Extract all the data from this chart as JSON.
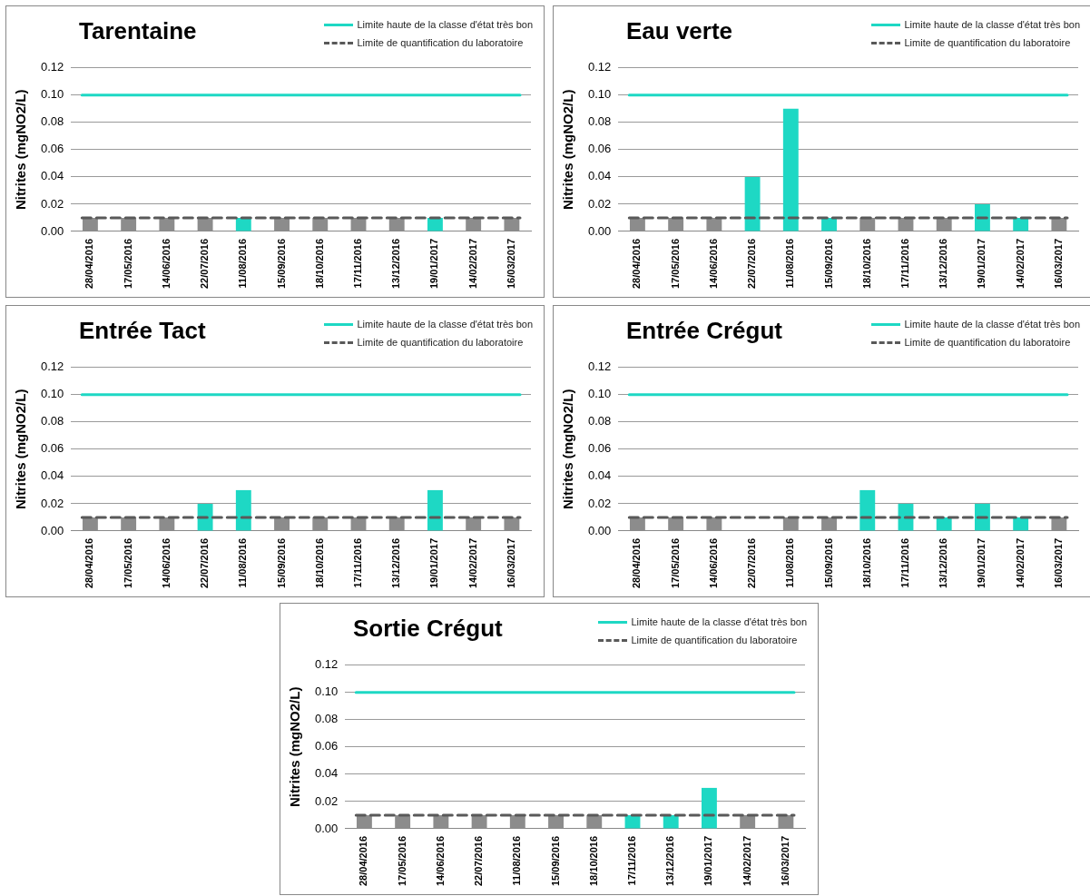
{
  "chart_data": [
    {
      "type": "bar",
      "title": "Tarentaine",
      "ylabel": "Nitrites (mgNO2/L)",
      "legend": "top right",
      "grid": "y",
      "categories": [
        "28/04/2016",
        "17/05/2016",
        "14/06/2016",
        "22/07/2016",
        "11/08/2016",
        "15/09/2016",
        "18/10/2016",
        "17/11/2016",
        "13/12/2016",
        "19/01/2017",
        "14/02/2017",
        "16/03/2017"
      ],
      "values": [
        0.01,
        0.01,
        0.01,
        0.01,
        0.01,
        0.01,
        0.01,
        0.01,
        0.01,
        0.01,
        0.01,
        0.01
      ],
      "colors": [
        "#8c8c8c",
        "#8c8c8c",
        "#8c8c8c",
        "#8c8c8c",
        "#1ed8c4",
        "#8c8c8c",
        "#8c8c8c",
        "#8c8c8c",
        "#8c8c8c",
        "#1ed8c4",
        "#8c8c8c",
        "#8c8c8c"
      ],
      "ylim": [
        0,
        0.12
      ],
      "yticks": [
        {
          "value": 0,
          "label": "0.00"
        },
        {
          "value": 0.02,
          "label": "0.02"
        },
        {
          "value": 0.04,
          "label": "0.04"
        },
        {
          "value": 0.06,
          "label": "0.06"
        },
        {
          "value": 0.08,
          "label": "0.08"
        },
        {
          "value": 0.1,
          "label": "0.10"
        },
        {
          "value": 0.12,
          "label": "0.12"
        }
      ],
      "ref_lines": [
        {
          "axis": "y",
          "value": 0.1,
          "label": "Limite haute de la classe d'état très bon",
          "color": "#1ed8c4",
          "line_style": "solid"
        },
        {
          "axis": "y",
          "value": 0.01,
          "label": "Limite de quantification du laboratoire",
          "color": "#595959",
          "line_style": "dashed"
        }
      ]
    },
    {
      "type": "bar",
      "title": "Eau verte",
      "ylabel": "Nitrites (mgNO2/L)",
      "legend": "top right",
      "grid": "y",
      "categories": [
        "28/04/2016",
        "17/05/2016",
        "14/06/2016",
        "22/07/2016",
        "11/08/2016",
        "15/09/2016",
        "18/10/2016",
        "17/11/2016",
        "13/12/2016",
        "19/01/2017",
        "14/02/2017",
        "16/03/2017"
      ],
      "values": [
        0.01,
        0.01,
        0.01,
        0.04,
        0.09,
        0.01,
        0.01,
        0.01,
        0.01,
        0.02,
        0.01,
        0.01
      ],
      "colors": [
        "#8c8c8c",
        "#8c8c8c",
        "#8c8c8c",
        "#1ed8c4",
        "#1ed8c4",
        "#1ed8c4",
        "#8c8c8c",
        "#8c8c8c",
        "#8c8c8c",
        "#1ed8c4",
        "#1ed8c4",
        "#8c8c8c"
      ],
      "ylim": [
        0,
        0.12
      ],
      "yticks": [
        {
          "value": 0,
          "label": "0.00"
        },
        {
          "value": 0.02,
          "label": "0.02"
        },
        {
          "value": 0.04,
          "label": "0.04"
        },
        {
          "value": 0.06,
          "label": "0.06"
        },
        {
          "value": 0.08,
          "label": "0.08"
        },
        {
          "value": 0.1,
          "label": "0.10"
        },
        {
          "value": 0.12,
          "label": "0.12"
        }
      ],
      "ref_lines": [
        {
          "axis": "y",
          "value": 0.1,
          "label": "Limite haute de la classe d'état très bon",
          "color": "#1ed8c4",
          "line_style": "solid"
        },
        {
          "axis": "y",
          "value": 0.01,
          "label": "Limite de quantification du laboratoire",
          "color": "#595959",
          "line_style": "dashed"
        }
      ]
    },
    {
      "type": "bar",
      "title": "Entrée Tact",
      "ylabel": "Nitrites (mgNO2/L)",
      "legend": "top right",
      "grid": "y",
      "categories": [
        "28/04/2016",
        "17/05/2016",
        "14/06/2016",
        "22/07/2016",
        "11/08/2016",
        "15/09/2016",
        "18/10/2016",
        "17/11/2016",
        "13/12/2016",
        "19/01/2017",
        "14/02/2017",
        "16/03/2017"
      ],
      "values": [
        0.01,
        0.01,
        0.01,
        0.02,
        0.03,
        0.01,
        0.01,
        0.01,
        0.01,
        0.03,
        0.01,
        0.01
      ],
      "colors": [
        "#8c8c8c",
        "#8c8c8c",
        "#8c8c8c",
        "#1ed8c4",
        "#1ed8c4",
        "#8c8c8c",
        "#8c8c8c",
        "#8c8c8c",
        "#8c8c8c",
        "#1ed8c4",
        "#8c8c8c",
        "#8c8c8c"
      ],
      "ylim": [
        0,
        0.12
      ],
      "yticks": [
        {
          "value": 0,
          "label": "0.00"
        },
        {
          "value": 0.02,
          "label": "0.02"
        },
        {
          "value": 0.04,
          "label": "0.04"
        },
        {
          "value": 0.06,
          "label": "0.06"
        },
        {
          "value": 0.08,
          "label": "0.08"
        },
        {
          "value": 0.1,
          "label": "0.10"
        },
        {
          "value": 0.12,
          "label": "0.12"
        }
      ],
      "ref_lines": [
        {
          "axis": "y",
          "value": 0.1,
          "label": "Limite haute de la classe d'état très bon",
          "color": "#1ed8c4",
          "line_style": "solid"
        },
        {
          "axis": "y",
          "value": 0.01,
          "label": "Limite de quantification du laboratoire",
          "color": "#595959",
          "line_style": "dashed"
        }
      ]
    },
    {
      "type": "bar",
      "title": "Entrée Crégut",
      "ylabel": "Nitrites (mgNO2/L)",
      "legend": "top right",
      "grid": "y",
      "categories": [
        "28/04/2016",
        "17/05/2016",
        "14/06/2016",
        "22/07/2016",
        "11/08/2016",
        "15/09/2016",
        "18/10/2016",
        "17/11/2016",
        "13/12/2016",
        "19/01/2017",
        "14/02/2017",
        "16/03/2017"
      ],
      "values": [
        0.01,
        0.01,
        0.01,
        null,
        0.01,
        0.01,
        0.03,
        0.02,
        0.01,
        0.02,
        0.01,
        0.01
      ],
      "colors": [
        "#8c8c8c",
        "#8c8c8c",
        "#8c8c8c",
        "#8c8c8c",
        "#8c8c8c",
        "#8c8c8c",
        "#1ed8c4",
        "#1ed8c4",
        "#1ed8c4",
        "#1ed8c4",
        "#1ed8c4",
        "#8c8c8c"
      ],
      "ylim": [
        0,
        0.12
      ],
      "yticks": [
        {
          "value": 0,
          "label": "0.00"
        },
        {
          "value": 0.02,
          "label": "0.02"
        },
        {
          "value": 0.04,
          "label": "0.04"
        },
        {
          "value": 0.06,
          "label": "0.06"
        },
        {
          "value": 0.08,
          "label": "0.08"
        },
        {
          "value": 0.1,
          "label": "0.10"
        },
        {
          "value": 0.12,
          "label": "0.12"
        }
      ],
      "ref_lines": [
        {
          "axis": "y",
          "value": 0.1,
          "label": "Limite haute de la classe d'état très bon",
          "color": "#1ed8c4",
          "line_style": "solid"
        },
        {
          "axis": "y",
          "value": 0.01,
          "label": "Limite de quantification du laboratoire",
          "color": "#595959",
          "line_style": "dashed"
        }
      ]
    },
    {
      "type": "bar",
      "title": "Sortie Crégut",
      "ylabel": "Nitrites (mgNO2/L)",
      "legend": "top right",
      "grid": "y",
      "categories": [
        "28/04/2016",
        "17/05/2016",
        "14/06/2016",
        "22/07/2016",
        "11/08/2016",
        "15/09/2016",
        "18/10/2016",
        "17/11/2016",
        "13/12/2016",
        "19/01/2017",
        "14/02/2017",
        "16/03/2017"
      ],
      "values": [
        0.01,
        0.01,
        0.01,
        0.01,
        0.01,
        0.01,
        0.01,
        0.01,
        0.01,
        0.03,
        0.01,
        0.01
      ],
      "colors": [
        "#8c8c8c",
        "#8c8c8c",
        "#8c8c8c",
        "#8c8c8c",
        "#8c8c8c",
        "#8c8c8c",
        "#8c8c8c",
        "#1ed8c4",
        "#1ed8c4",
        "#1ed8c4",
        "#8c8c8c",
        "#8c8c8c"
      ],
      "ylim": [
        0,
        0.12
      ],
      "yticks": [
        {
          "value": 0,
          "label": "0.00"
        },
        {
          "value": 0.02,
          "label": "0.02"
        },
        {
          "value": 0.04,
          "label": "0.04"
        },
        {
          "value": 0.06,
          "label": "0.06"
        },
        {
          "value": 0.08,
          "label": "0.08"
        },
        {
          "value": 0.1,
          "label": "0.10"
        },
        {
          "value": 0.12,
          "label": "0.12"
        }
      ],
      "ref_lines": [
        {
          "axis": "y",
          "value": 0.1,
          "label": "Limite haute de la classe d'état très bon",
          "color": "#1ed8c4",
          "line_style": "solid"
        },
        {
          "axis": "y",
          "value": 0.01,
          "label": "Limite de quantification du laboratoire",
          "color": "#595959",
          "line_style": "dashed"
        }
      ]
    }
  ]
}
